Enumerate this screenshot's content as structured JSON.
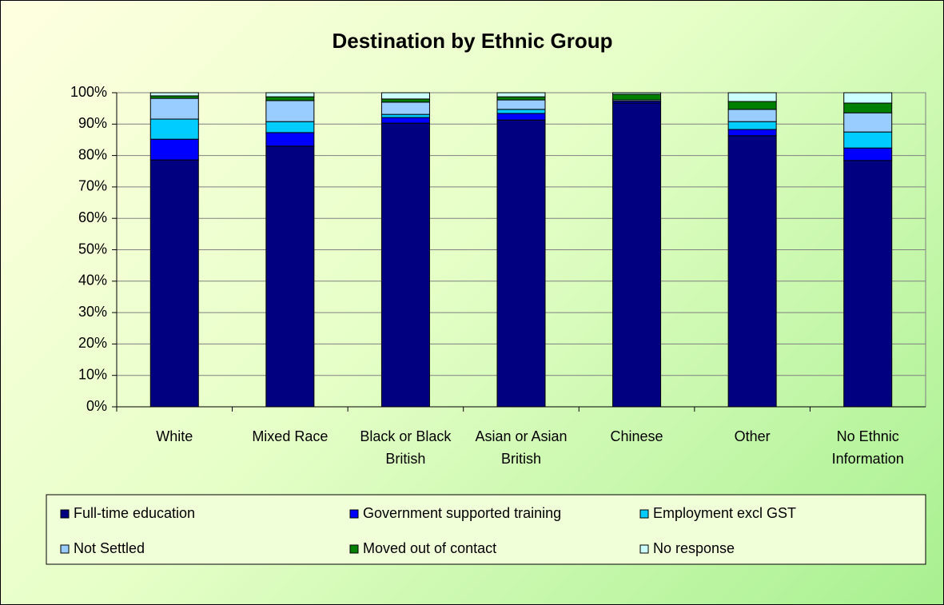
{
  "chart_data": {
    "type": "stacked_bar",
    "title": "Destination by Ethnic Group",
    "categories": [
      "White",
      "Mixed Race",
      "Black or Black British",
      "Asian or Asian British",
      "Chinese",
      "Other",
      "No Ethnic Information"
    ],
    "series": [
      {
        "name": "Full-time education",
        "color": "#000080",
        "values": [
          78.6,
          83.0,
          90.3,
          91.3,
          96.7,
          86.3,
          78.4
        ]
      },
      {
        "name": "Government supported training",
        "color": "#0000ff",
        "values": [
          6.6,
          4.3,
          1.8,
          2.1,
          0.5,
          2.0,
          4.0
        ]
      },
      {
        "name": "Employment excl GST",
        "color": "#00ccff",
        "values": [
          6.4,
          3.5,
          1.0,
          1.3,
          0.1,
          2.5,
          5.1
        ]
      },
      {
        "name": "Not Settled",
        "color": "#99ccff",
        "values": [
          6.6,
          6.7,
          3.9,
          3.0,
          0.4,
          3.9,
          6.1
        ]
      },
      {
        "name": "Moved out of contact",
        "color": "#008000",
        "values": [
          0.8,
          1.2,
          1.0,
          1.0,
          1.8,
          2.5,
          3.1
        ]
      },
      {
        "name": "No response",
        "color": "#ccffff",
        "values": [
          1.0,
          1.3,
          2.0,
          1.3,
          0.5,
          2.8,
          3.3
        ]
      }
    ],
    "ylim": [
      0,
      100
    ],
    "yticks": [
      {
        "value": 0,
        "label": "0%"
      },
      {
        "value": 10,
        "label": "10%"
      },
      {
        "value": 20,
        "label": "20%"
      },
      {
        "value": 30,
        "label": "30%"
      },
      {
        "value": 40,
        "label": "40%"
      },
      {
        "value": 50,
        "label": "50%"
      },
      {
        "value": 60,
        "label": "60%"
      },
      {
        "value": 70,
        "label": "70%"
      },
      {
        "value": 80,
        "label": "80%"
      },
      {
        "value": 90,
        "label": "90%"
      },
      {
        "value": 100,
        "label": "100%"
      }
    ],
    "legend": "bottom"
  }
}
